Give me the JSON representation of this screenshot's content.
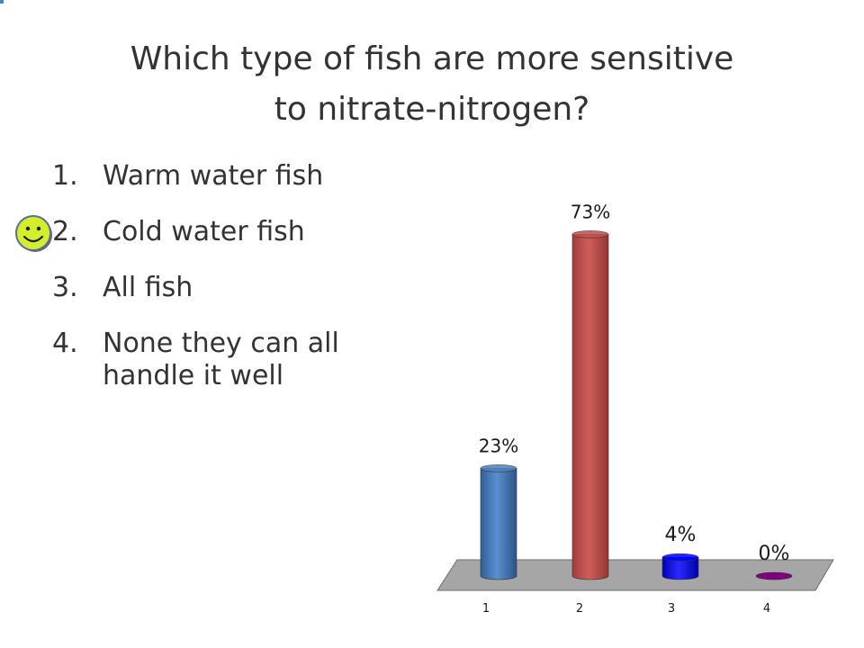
{
  "slide": {
    "title_line1": "Which type of fish are more sensitive",
    "title_line2": "to nitrate-nitrogen?",
    "options": [
      {
        "number": "1.",
        "text": "Warm water fish"
      },
      {
        "number": "2.",
        "text": "Cold water fish",
        "correct": true
      },
      {
        "number": "3.",
        "text": "All fish"
      },
      {
        "number": "4.",
        "text": "None they can all handle it well"
      }
    ],
    "correct_marker_icon": "smiley-icon"
  },
  "chart_data": {
    "type": "bar",
    "categories": [
      "1",
      "2",
      "3",
      "4"
    ],
    "values": [
      23,
      73,
      4,
      0
    ],
    "data_labels": [
      "23%",
      "73%",
      "4%",
      "0%"
    ],
    "colors": [
      "#4f81bd",
      "#c0504d",
      "#0000ff",
      "#800080"
    ],
    "ylim": [
      0,
      100
    ],
    "grid": false,
    "legend": "none",
    "floor_color": "#a6a6a6"
  }
}
